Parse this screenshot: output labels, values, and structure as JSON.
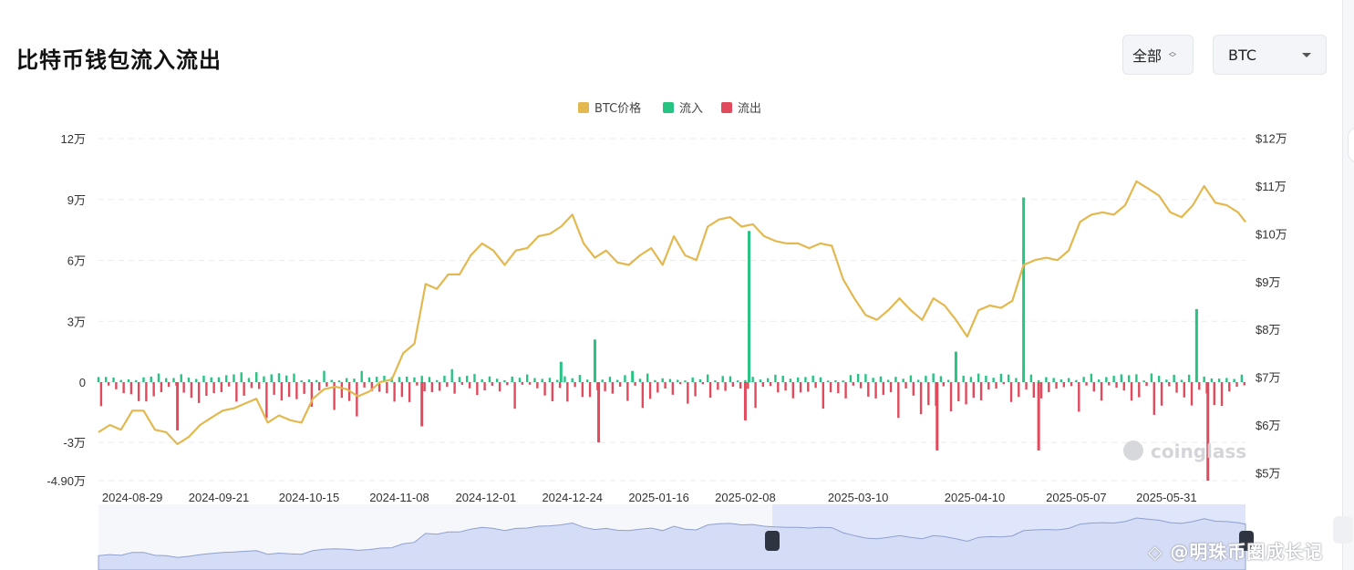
{
  "header": {
    "title": "比特币钱包流入流出",
    "range_select": "全部",
    "coin_select": "BTC"
  },
  "watermark": "◇ @明珠币圈成长记",
  "chart_data": {
    "type": "bar",
    "legend": {
      "position": "top-center",
      "items": [
        {
          "name": "BTC价格",
          "color": "#e2b84f"
        },
        {
          "name": "流入",
          "color": "#27c382"
        },
        {
          "name": "流出",
          "color": "#e04a5c"
        }
      ]
    },
    "x_ticks": [
      "2024-08-29",
      "2024-09-21",
      "2024-10-15",
      "2024-11-08",
      "2024-12-01",
      "2024-12-24",
      "2025-01-16",
      "2025-02-08",
      "2025-03-10",
      "2025-04-10",
      "2025-05-07",
      "2025-05-31"
    ],
    "y_left": {
      "ticks": [
        120000,
        90000,
        60000,
        30000,
        0,
        -30000,
        -49000
      ],
      "tick_labels": [
        "12万",
        "9万",
        "6万",
        "3万",
        "0",
        "-3万",
        "-4.90万"
      ],
      "range": [
        -49000,
        120000
      ]
    },
    "y_right": {
      "ticks": [
        120000,
        110000,
        100000,
        90000,
        80000,
        70000,
        60000,
        50000
      ],
      "tick_labels": [
        "$12万",
        "$11万",
        "$10万",
        "$9万",
        "$8万",
        "$7万",
        "$6万",
        "$5万"
      ],
      "range": [
        48000,
        120000
      ]
    },
    "grid": true,
    "start_date": "2024-08-20",
    "end_date": "2025-06-21",
    "price_series": {
      "name": "BTC价格",
      "points": [
        [
          "2024-08-20",
          58500
        ],
        [
          "2024-08-23",
          60000
        ],
        [
          "2024-08-26",
          59000
        ],
        [
          "2024-08-29",
          63000
        ],
        [
          "2024-09-01",
          63000
        ],
        [
          "2024-09-04",
          59000
        ],
        [
          "2024-09-07",
          58500
        ],
        [
          "2024-09-10",
          56000
        ],
        [
          "2024-09-13",
          57500
        ],
        [
          "2024-09-16",
          60000
        ],
        [
          "2024-09-19",
          61500
        ],
        [
          "2024-09-22",
          63000
        ],
        [
          "2024-09-25",
          63500
        ],
        [
          "2024-09-28",
          64500
        ],
        [
          "2024-10-01",
          65500
        ],
        [
          "2024-10-04",
          60500
        ],
        [
          "2024-10-07",
          62000
        ],
        [
          "2024-10-10",
          61000
        ],
        [
          "2024-10-13",
          60500
        ],
        [
          "2024-10-16",
          65500
        ],
        [
          "2024-10-19",
          67500
        ],
        [
          "2024-10-22",
          68000
        ],
        [
          "2024-10-25",
          67500
        ],
        [
          "2024-10-28",
          66000
        ],
        [
          "2024-10-31",
          67000
        ],
        [
          "2024-11-03",
          69000
        ],
        [
          "2024-11-06",
          69500
        ],
        [
          "2024-11-09",
          75000
        ],
        [
          "2024-11-12",
          77000
        ],
        [
          "2024-11-15",
          89500
        ],
        [
          "2024-11-18",
          88500
        ],
        [
          "2024-11-21",
          91500
        ],
        [
          "2024-11-24",
          91500
        ],
        [
          "2024-11-27",
          95500
        ],
        [
          "2024-11-30",
          98000
        ],
        [
          "2024-12-03",
          96500
        ],
        [
          "2024-12-06",
          93500
        ],
        [
          "2024-12-09",
          96500
        ],
        [
          "2024-12-12",
          97000
        ],
        [
          "2024-12-15",
          99500
        ],
        [
          "2024-12-18",
          100000
        ],
        [
          "2024-12-21",
          101500
        ],
        [
          "2024-12-24",
          104000
        ],
        [
          "2024-12-27",
          98000
        ],
        [
          "2024-12-30",
          95000
        ],
        [
          "2025-01-02",
          96500
        ],
        [
          "2025-01-05",
          94000
        ],
        [
          "2025-01-08",
          93500
        ],
        [
          "2025-01-11",
          95500
        ],
        [
          "2025-01-14",
          97000
        ],
        [
          "2025-01-17",
          93500
        ],
        [
          "2025-01-20",
          99500
        ],
        [
          "2025-01-23",
          95500
        ],
        [
          "2025-01-26",
          94500
        ],
        [
          "2025-01-29",
          101500
        ],
        [
          "2025-02-01",
          103000
        ],
        [
          "2025-02-04",
          103500
        ],
        [
          "2025-02-07",
          101500
        ],
        [
          "2025-02-10",
          102000
        ],
        [
          "2025-02-13",
          99500
        ],
        [
          "2025-02-16",
          98500
        ],
        [
          "2025-02-19",
          98000
        ],
        [
          "2025-02-22",
          98000
        ],
        [
          "2025-02-25",
          97000
        ],
        [
          "2025-02-28",
          98000
        ],
        [
          "2025-03-03",
          97500
        ],
        [
          "2025-03-06",
          90500
        ],
        [
          "2025-03-09",
          86500
        ],
        [
          "2025-03-12",
          83000
        ],
        [
          "2025-03-15",
          82000
        ],
        [
          "2025-03-18",
          84000
        ],
        [
          "2025-03-21",
          86500
        ],
        [
          "2025-03-24",
          84000
        ],
        [
          "2025-03-27",
          82000
        ],
        [
          "2025-03-30",
          86500
        ],
        [
          "2025-04-02",
          85000
        ],
        [
          "2025-04-05",
          82000
        ],
        [
          "2025-04-08",
          78500
        ],
        [
          "2025-04-11",
          84000
        ],
        [
          "2025-04-14",
          85000
        ],
        [
          "2025-04-17",
          84500
        ],
        [
          "2025-04-20",
          86000
        ],
        [
          "2025-04-23",
          93500
        ],
        [
          "2025-04-26",
          94500
        ],
        [
          "2025-04-29",
          95000
        ],
        [
          "2025-05-02",
          94500
        ],
        [
          "2025-05-05",
          96500
        ],
        [
          "2025-05-08",
          102500
        ],
        [
          "2025-05-11",
          104000
        ],
        [
          "2025-05-14",
          104500
        ],
        [
          "2025-05-17",
          104000
        ],
        [
          "2025-05-20",
          106000
        ],
        [
          "2025-05-23",
          111000
        ],
        [
          "2025-05-26",
          109500
        ],
        [
          "2025-05-29",
          108000
        ],
        [
          "2025-06-01",
          104500
        ],
        [
          "2025-06-04",
          103500
        ],
        [
          "2025-06-07",
          106000
        ],
        [
          "2025-06-10",
          110000
        ],
        [
          "2025-06-13",
          106500
        ],
        [
          "2025-06-16",
          106000
        ],
        [
          "2025-06-19",
          104500
        ],
        [
          "2025-06-21",
          102500
        ]
      ]
    },
    "inflow_spikes": [
      [
        "2024-12-21",
        10000
      ],
      [
        "2024-12-30",
        21000
      ],
      [
        "2025-01-09",
        5500
      ],
      [
        "2025-02-09",
        74500
      ],
      [
        "2025-04-05",
        15000
      ],
      [
        "2025-04-23",
        91000
      ],
      [
        "2025-06-08",
        36000
      ]
    ],
    "outflow_spikes": [
      [
        "2024-09-10",
        -24000
      ],
      [
        "2024-11-14",
        -22000
      ],
      [
        "2024-12-31",
        -30000
      ],
      [
        "2025-02-08",
        -19000
      ],
      [
        "2025-03-31",
        -34000
      ],
      [
        "2025-04-27",
        -34000
      ],
      [
        "2025-06-11",
        -49000
      ]
    ]
  },
  "brand": "coinglass"
}
